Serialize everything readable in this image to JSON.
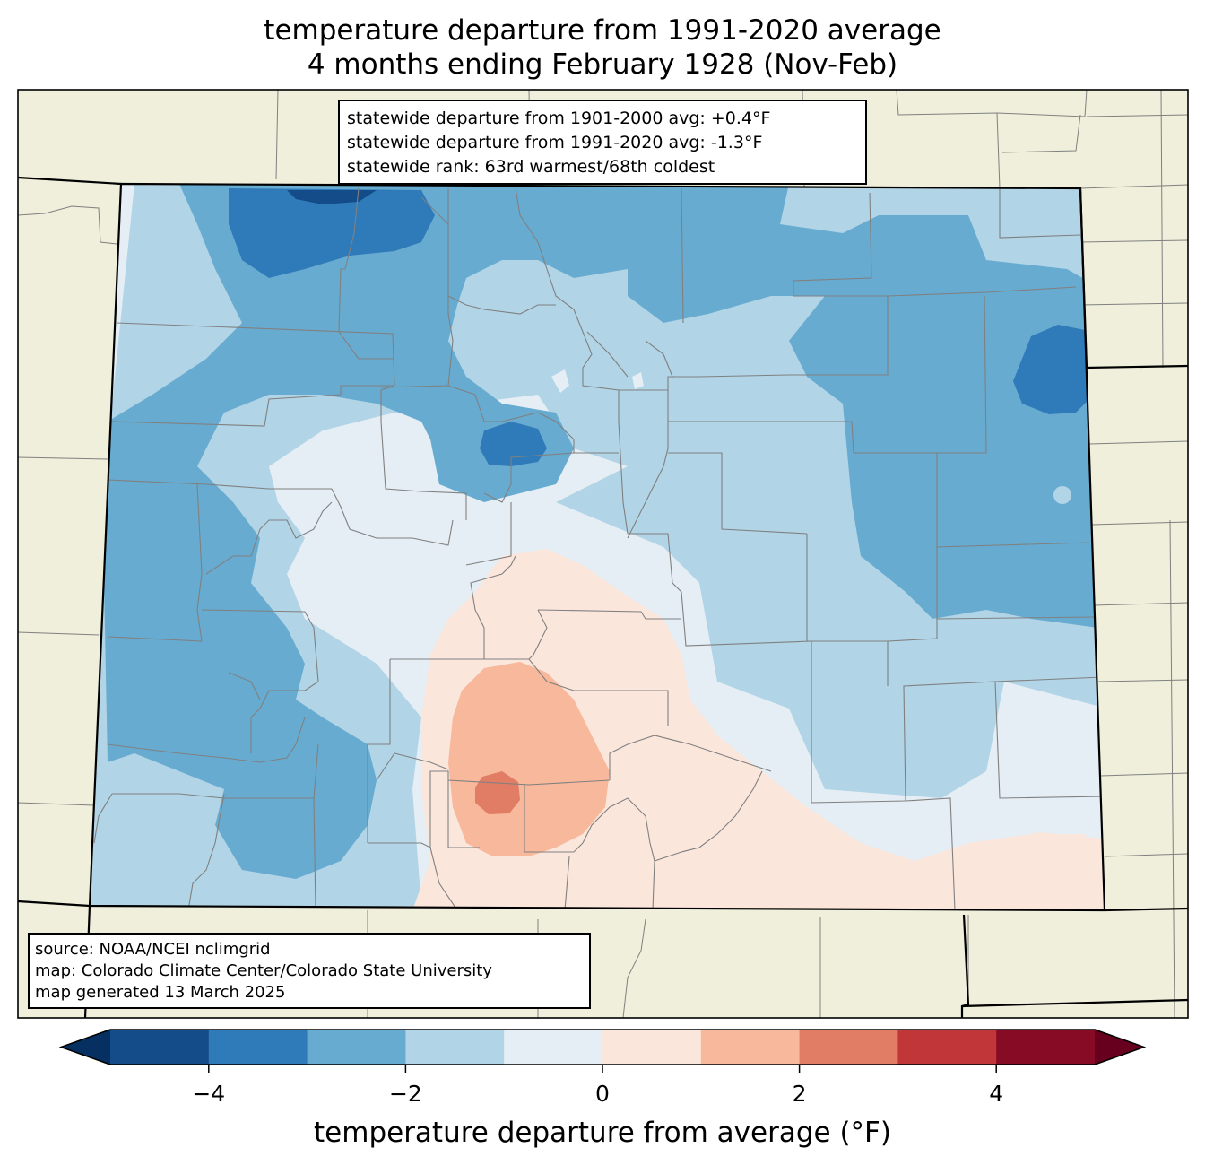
{
  "title": {
    "line1": "temperature departure from 1991-2020 average",
    "line2": "4 months ending February 1928 (Nov-Feb)"
  },
  "stats_box": {
    "line1": "statewide departure from 1901-2000 avg: +0.4°F",
    "line2": "statewide departure from 1991-2020 avg: -1.3°F",
    "line3": "statewide rank: 63rd warmest/68th coldest"
  },
  "source_box": {
    "line1": "source: NOAA/NCEI nclimgrid",
    "line2": "map: Colorado Climate Center/Colorado State University",
    "line3": "map generated 13 March 2025"
  },
  "colorbar": {
    "label": "temperature departure from average (°F)",
    "min": -5,
    "max": 5,
    "boundaries": [
      -5,
      -4,
      -3,
      -2,
      -1,
      0,
      1,
      2,
      3,
      4,
      5
    ],
    "colors": [
      "#134c88",
      "#2f7ab9",
      "#68abd0",
      "#b1d4e6",
      "#e5eef4",
      "#fbe6dc",
      "#f7b89c",
      "#e17c65",
      "#c13638",
      "#870b24"
    ],
    "under_color": "#053061",
    "over_color": "#67001f",
    "ticks": [
      -4,
      -2,
      0,
      2,
      4
    ],
    "tick_labels": [
      "−4",
      "−2",
      "0",
      "2",
      "4"
    ]
  },
  "map_colors": {
    "land": "#efefdc",
    "county_lines": "#808080",
    "state_lines": "#000000"
  }
}
